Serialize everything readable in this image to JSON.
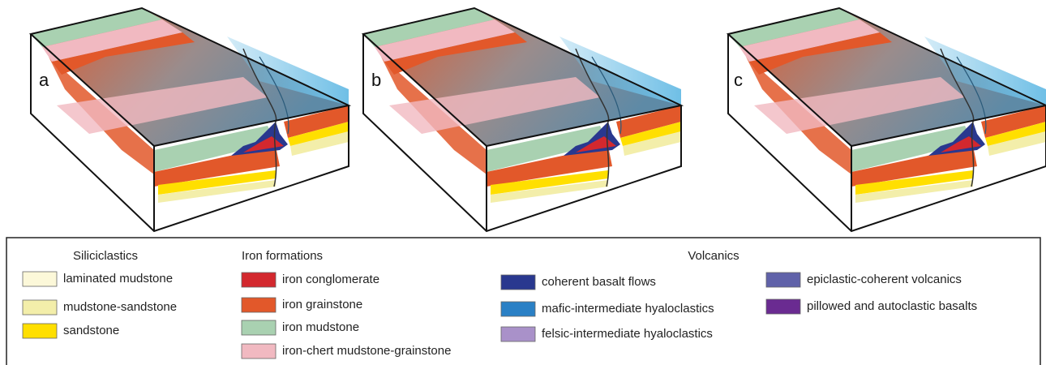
{
  "panels": [
    "a",
    "b",
    "c"
  ],
  "legend": {
    "groups": [
      {
        "title": "Siliciclastics",
        "items": [
          {
            "label": "laminated mudstone",
            "color": "#fcf8d9"
          },
          {
            "label": "mudstone-sandstone",
            "color": "#f3eeaa"
          },
          {
            "label": "sandstone",
            "color": "#ffdf00"
          }
        ]
      },
      {
        "title": "Iron formations",
        "items": [
          {
            "label": "iron conglomerate",
            "color": "#d3282e"
          },
          {
            "label": "iron grainstone",
            "color": "#e2582a"
          },
          {
            "label": "iron mudstone",
            "color": "#a9d1b1"
          },
          {
            "label": "iron-chert mudstone-grainstone",
            "color": "#f1b9c1"
          }
        ]
      },
      {
        "title": "Volcanics",
        "items": [
          {
            "label": "coherent basalt flows",
            "color": "#29388f"
          },
          {
            "label": "mafic-intermediate hyaloclastics",
            "color": "#2a80c5"
          },
          {
            "label": "felsic-intermediate hyaloclastics",
            "color": "#a991c9"
          },
          {
            "label": "epiclastic-coherent volcanics",
            "color": "#6062a9"
          },
          {
            "label": "pillowed and autoclastic basalts",
            "color": "#6a2b91"
          }
        ]
      }
    ]
  }
}
